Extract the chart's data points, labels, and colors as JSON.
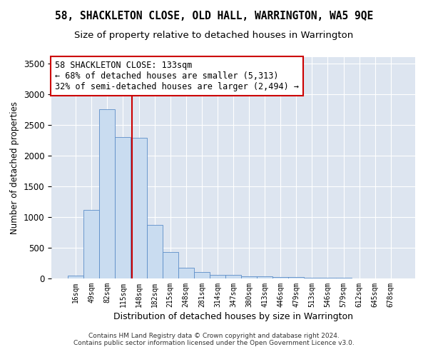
{
  "title": "58, SHACKLETON CLOSE, OLD HALL, WARRINGTON, WA5 9QE",
  "subtitle": "Size of property relative to detached houses in Warrington",
  "xlabel": "Distribution of detached houses by size in Warrington",
  "ylabel": "Number of detached properties",
  "footnote1": "Contains HM Land Registry data © Crown copyright and database right 2024.",
  "footnote2": "Contains public sector information licensed under the Open Government Licence v3.0.",
  "annotation_line1": "58 SHACKLETON CLOSE: 133sqm",
  "annotation_line2": "← 68% of detached houses are smaller (5,313)",
  "annotation_line3": "32% of semi-detached houses are larger (2,494) →",
  "bin_labels": [
    "16sqm",
    "49sqm",
    "82sqm",
    "115sqm",
    "148sqm",
    "182sqm",
    "215sqm",
    "248sqm",
    "281sqm",
    "314sqm",
    "347sqm",
    "380sqm",
    "413sqm",
    "446sqm",
    "479sqm",
    "513sqm",
    "546sqm",
    "579sqm",
    "612sqm",
    "645sqm",
    "678sqm"
  ],
  "bar_values": [
    50,
    1110,
    2750,
    2300,
    2290,
    870,
    430,
    175,
    100,
    60,
    55,
    40,
    30,
    25,
    18,
    12,
    10,
    8,
    5,
    5,
    3
  ],
  "bar_color": "#c9dcf0",
  "bar_edge_color": "#5b8dc8",
  "vline_x": 3.55,
  "vline_color": "#cc0000",
  "ylim": [
    0,
    3600
  ],
  "yticks": [
    0,
    500,
    1000,
    1500,
    2000,
    2500,
    3000,
    3500
  ],
  "background_color": "#dde5f0",
  "grid_color": "#ffffff",
  "title_fontsize": 10.5,
  "subtitle_fontsize": 9.5,
  "annotation_fontsize": 8.5
}
